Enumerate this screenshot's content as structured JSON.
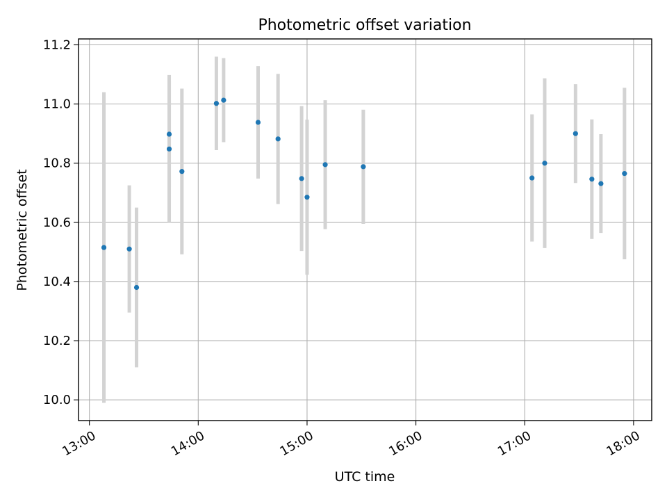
{
  "chart_data": {
    "type": "scatter",
    "title": "Photometric offset variation",
    "xlabel": "UTC time",
    "ylabel": "Photometric offset",
    "xlim": [
      "12:54",
      "18:10"
    ],
    "ylim": [
      9.93,
      11.22
    ],
    "x_ticks": [
      "13:00",
      "14:00",
      "15:00",
      "16:00",
      "17:00",
      "18:00"
    ],
    "y_ticks": [
      "10.0",
      "10.2",
      "10.4",
      "10.6",
      "10.8",
      "11.0",
      "11.2"
    ],
    "grid": true,
    "x_tick_rotation_deg": 30,
    "point_color": "#1f77b4",
    "errorbar_color": "#d3d3d3",
    "points": [
      {
        "time": "13:08",
        "y": 10.515,
        "err": 0.525
      },
      {
        "time": "13:22",
        "y": 10.51,
        "err": 0.215
      },
      {
        "time": "13:26",
        "y": 10.38,
        "err": 0.27
      },
      {
        "time": "13:44",
        "y": 10.898,
        "err": 0.18
      },
      {
        "time": "13:44",
        "y": 10.848,
        "err": 0.25
      },
      {
        "time": "13:51",
        "y": 10.772,
        "err": 0.28
      },
      {
        "time": "14:10",
        "y": 11.002,
        "err": 0.158
      },
      {
        "time": "14:14",
        "y": 11.013,
        "err": 0.142
      },
      {
        "time": "14:33",
        "y": 10.938,
        "err": 0.19
      },
      {
        "time": "14:44",
        "y": 10.882,
        "err": 0.22
      },
      {
        "time": "14:57",
        "y": 10.748,
        "err": 0.245
      },
      {
        "time": "15:00",
        "y": 10.685,
        "err": 0.262
      },
      {
        "time": "15:10",
        "y": 10.795,
        "err": 0.218
      },
      {
        "time": "15:31",
        "y": 10.788,
        "err": 0.193
      },
      {
        "time": "17:04",
        "y": 10.75,
        "err": 0.215
      },
      {
        "time": "17:11",
        "y": 10.8,
        "err": 0.287
      },
      {
        "time": "17:28",
        "y": 10.9,
        "err": 0.167
      },
      {
        "time": "17:37",
        "y": 10.746,
        "err": 0.202
      },
      {
        "time": "17:42",
        "y": 10.731,
        "err": 0.167
      },
      {
        "time": "17:55",
        "y": 10.765,
        "err": 0.29
      }
    ]
  }
}
